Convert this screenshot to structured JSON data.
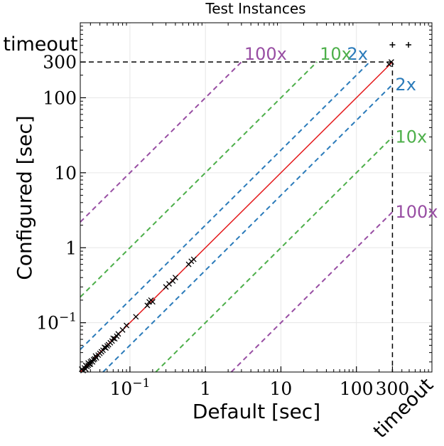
{
  "chart_data": {
    "type": "scatter",
    "title": "Test Instances",
    "xlabel": "Default [sec]",
    "ylabel": "Configured [sec]",
    "scale": "log",
    "xlim": [
      0.022,
      1000
    ],
    "ylim": [
      0.022,
      1000
    ],
    "grid": true,
    "cutoff": 300,
    "xticks": [
      {
        "value": 0.1,
        "base": "10",
        "exp": "−1"
      },
      {
        "value": 1,
        "label": "1"
      },
      {
        "value": 10,
        "label": "10"
      },
      {
        "value": 100,
        "label": "100"
      },
      {
        "value": 300,
        "label": "300"
      }
    ],
    "yticks": [
      {
        "value": 0.1,
        "base": "10",
        "exp": "−1"
      },
      {
        "value": 1,
        "label": "1"
      },
      {
        "value": 10,
        "label": "10"
      },
      {
        "value": 100,
        "label": "100"
      },
      {
        "value": 300,
        "label": "300"
      }
    ],
    "timeout_label": "timeout",
    "ratio_lines": [
      {
        "factor": 2,
        "label": "2x",
        "color": "#2b7bba"
      },
      {
        "factor": 10,
        "label": "10x",
        "color": "#4daf4a"
      },
      {
        "factor": 100,
        "label": "100x",
        "color": "#984ea3"
      }
    ],
    "diagonal_color": "#e41a1c",
    "points": [
      [
        0.023,
        0.024
      ],
      [
        0.024,
        0.023
      ],
      [
        0.025,
        0.025
      ],
      [
        0.026,
        0.024
      ],
      [
        0.026,
        0.027
      ],
      [
        0.027,
        0.026
      ],
      [
        0.028,
        0.027
      ],
      [
        0.028,
        0.029
      ],
      [
        0.029,
        0.028
      ],
      [
        0.03,
        0.03
      ],
      [
        0.03,
        0.028
      ],
      [
        0.031,
        0.031
      ],
      [
        0.032,
        0.03
      ],
      [
        0.033,
        0.032
      ],
      [
        0.034,
        0.033
      ],
      [
        0.035,
        0.036
      ],
      [
        0.036,
        0.034
      ],
      [
        0.038,
        0.037
      ],
      [
        0.04,
        0.039
      ],
      [
        0.042,
        0.041
      ],
      [
        0.044,
        0.043
      ],
      [
        0.046,
        0.047
      ],
      [
        0.048,
        0.046
      ],
      [
        0.05,
        0.049
      ],
      [
        0.052,
        0.051
      ],
      [
        0.055,
        0.054
      ],
      [
        0.058,
        0.057
      ],
      [
        0.06,
        0.062
      ],
      [
        0.063,
        0.061
      ],
      [
        0.067,
        0.066
      ],
      [
        0.07,
        0.071
      ],
      [
        0.08,
        0.08
      ],
      [
        0.09,
        0.092
      ],
      [
        0.12,
        0.12
      ],
      [
        0.17,
        0.17
      ],
      [
        0.18,
        0.19
      ],
      [
        0.19,
        0.2
      ],
      [
        0.2,
        0.19
      ],
      [
        0.3,
        0.3
      ],
      [
        0.33,
        0.33
      ],
      [
        0.37,
        0.36
      ],
      [
        0.4,
        0.4
      ],
      [
        0.6,
        0.6
      ],
      [
        0.65,
        0.66
      ],
      [
        0.7,
        0.7
      ],
      [
        270,
        280
      ],
      [
        290,
        300
      ]
    ],
    "timeout_points": [
      {
        "x": 300,
        "y": "timeout"
      },
      {
        "x": "timeout",
        "y": "timeout"
      }
    ]
  }
}
